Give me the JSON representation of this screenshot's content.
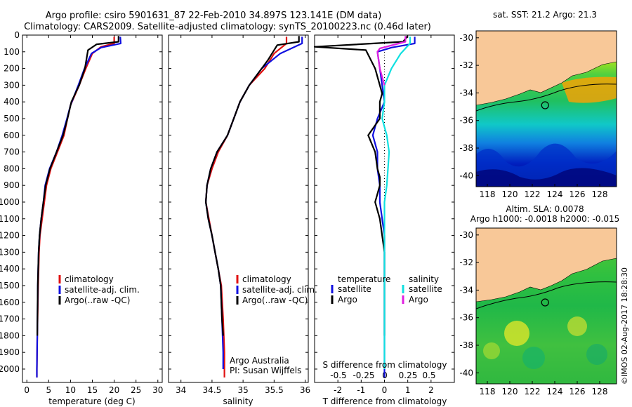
{
  "header": {
    "title_line1": "Argo profile: csiro 5901631_87 22-Feb-2010 34.897S 123.141E (DM data)",
    "title_line2": "Climatology: CARS2009. Satellite-adjusted climatology: synTS_20100223.nc (0.46d later)"
  },
  "colors": {
    "climatology": "#e01010",
    "satellite": "#1010e0",
    "argo": "#000000",
    "argo_s": "#e020e0",
    "sat_s": "#10e0e0",
    "land": "#f8c898"
  },
  "credit": {
    "org": "Argo Australia",
    "pi": "PI: Susan Wijffels"
  },
  "timestamp": "©IMOS 02-Aug-2017 18:28:30",
  "chart_data": [
    {
      "type": "line",
      "name": "temperature-profile",
      "xlabel": "temperature (deg C)",
      "ylabel": "",
      "xlim": [
        -1,
        31
      ],
      "ylim": [
        2080,
        0
      ],
      "xticks": [
        0,
        5,
        10,
        15,
        20,
        25,
        30
      ],
      "yticks": [
        0,
        100,
        200,
        300,
        400,
        500,
        600,
        700,
        800,
        900,
        1000,
        1100,
        1200,
        1300,
        1400,
        1500,
        1600,
        1700,
        1800,
        1900,
        2000
      ],
      "legend": [
        "climatology",
        "satellite-adj. clim.",
        "Argo(..raw -QC)"
      ],
      "series": [
        {
          "name": "climatology",
          "color": "#e01010",
          "points": [
            [
              20,
              10
            ],
            [
              20,
              50
            ],
            [
              17,
              70
            ],
            [
              15,
              110
            ],
            [
              13.5,
              200
            ],
            [
              12,
              300
            ],
            [
              10,
              420
            ],
            [
              9.3,
              500
            ],
            [
              8.5,
              600
            ],
            [
              7,
              700
            ],
            [
              5.5,
              800
            ],
            [
              4.5,
              900
            ],
            [
              4,
              1000
            ],
            [
              3.5,
              1100
            ],
            [
              3,
              1200
            ],
            [
              2.8,
              1300
            ],
            [
              2.6,
              1500
            ],
            [
              2.4,
              1800
            ],
            [
              2.3,
              2000
            ],
            [
              2.3,
              2050
            ]
          ]
        },
        {
          "name": "satellite-adj. clim.",
          "color": "#1010e0",
          "points": [
            [
              21.4,
              10
            ],
            [
              21.5,
              50
            ],
            [
              17,
              75
            ],
            [
              14.8,
              110
            ],
            [
              13.2,
              200
            ],
            [
              11.8,
              300
            ],
            [
              10,
              420
            ],
            [
              9.2,
              500
            ],
            [
              8.1,
              600
            ],
            [
              6.8,
              700
            ],
            [
              5.2,
              800
            ],
            [
              4.2,
              900
            ],
            [
              3.8,
              1000
            ],
            [
              3.3,
              1100
            ],
            [
              2.9,
              1200
            ],
            [
              2.7,
              1300
            ],
            [
              2.5,
              1500
            ],
            [
              2.4,
              1800
            ],
            [
              2.3,
              2000
            ],
            [
              2.3,
              2050
            ]
          ]
        },
        {
          "name": "Argo(..raw -QC)",
          "color": "#000000",
          "points": [
            [
              21,
              5
            ],
            [
              21,
              40
            ],
            [
              16,
              55
            ],
            [
              14,
              90
            ],
            [
              13.3,
              200
            ],
            [
              12,
              300
            ],
            [
              10.2,
              400
            ],
            [
              9.3,
              500
            ],
            [
              8.3,
              600
            ],
            [
              6.8,
              700
            ],
            [
              5.3,
              800
            ],
            [
              4.3,
              900
            ],
            [
              3.8,
              1000
            ],
            [
              3.3,
              1100
            ],
            [
              2.9,
              1200
            ],
            [
              2.7,
              1300
            ],
            [
              2.5,
              1500
            ],
            [
              2.4,
              1800
            ]
          ]
        }
      ]
    },
    {
      "type": "line",
      "name": "salinity-profile",
      "xlabel": "salinity",
      "xlim": [
        33.8,
        36.05
      ],
      "ylim": [
        2080,
        0
      ],
      "xticks": [
        34,
        34.5,
        35,
        35.5,
        36
      ],
      "legend": [
        "climatology",
        "satellite-adj. clim.",
        "Argo(..raw -QC)"
      ],
      "series": [
        {
          "name": "climatology",
          "color": "#e01010",
          "points": [
            [
              35.7,
              10
            ],
            [
              35.7,
              50
            ],
            [
              35.5,
              110
            ],
            [
              35.35,
              200
            ],
            [
              35.1,
              300
            ],
            [
              34.95,
              400
            ],
            [
              34.85,
              500
            ],
            [
              34.75,
              600
            ],
            [
              34.6,
              700
            ],
            [
              34.5,
              800
            ],
            [
              34.42,
              900
            ],
            [
              34.4,
              1000
            ],
            [
              34.45,
              1100
            ],
            [
              34.5,
              1200
            ],
            [
              34.55,
              1300
            ],
            [
              34.6,
              1400
            ],
            [
              34.65,
              1500
            ],
            [
              34.68,
              1700
            ],
            [
              34.7,
              1900
            ],
            [
              34.7,
              2050
            ]
          ]
        },
        {
          "name": "satellite-adj. clim.",
          "color": "#1010e0",
          "points": [
            [
              35.95,
              10
            ],
            [
              35.95,
              50
            ],
            [
              35.6,
              110
            ],
            [
              35.3,
              200
            ],
            [
              35.1,
              300
            ],
            [
              34.95,
              400
            ],
            [
              34.85,
              500
            ],
            [
              34.75,
              600
            ],
            [
              34.58,
              700
            ],
            [
              34.48,
              800
            ],
            [
              34.42,
              900
            ],
            [
              34.4,
              1000
            ],
            [
              34.44,
              1100
            ],
            [
              34.5,
              1200
            ],
            [
              34.55,
              1300
            ],
            [
              34.6,
              1400
            ],
            [
              34.64,
              1500
            ],
            [
              34.66,
              1700
            ],
            [
              34.68,
              1900
            ],
            [
              34.68,
              2000
            ]
          ]
        },
        {
          "name": "Argo(..raw -QC)",
          "color": "#000000",
          "points": [
            [
              35.9,
              5
            ],
            [
              35.9,
              40
            ],
            [
              35.55,
              60
            ],
            [
              35.4,
              150
            ],
            [
              35.3,
              200
            ],
            [
              35.1,
              300
            ],
            [
              34.95,
              400
            ],
            [
              34.85,
              500
            ],
            [
              34.75,
              600
            ],
            [
              34.58,
              700
            ],
            [
              34.48,
              800
            ],
            [
              34.42,
              900
            ],
            [
              34.4,
              1000
            ],
            [
              34.44,
              1100
            ],
            [
              34.5,
              1200
            ],
            [
              34.55,
              1300
            ],
            [
              34.6,
              1400
            ],
            [
              34.64,
              1500
            ],
            [
              34.66,
              1700
            ],
            [
              34.68,
              1800
            ]
          ]
        }
      ]
    },
    {
      "type": "line",
      "name": "difference-profile",
      "xlabel": "T difference from climatology",
      "xlabel2": "S difference from climatology",
      "xlim": [
        -3,
        3
      ],
      "ylim": [
        2080,
        0
      ],
      "xticks": [
        -2,
        -1,
        0,
        1,
        2
      ],
      "xticks2": [
        "-0.5",
        "-0.25",
        "0",
        "0.25",
        "0.5"
      ],
      "legend": {
        "temperature": "temperature",
        "salinity": "salinity",
        "satellite": "satellite",
        "argo": "Argo"
      },
      "series": [
        {
          "name": "T satellite",
          "color": "#1010e0",
          "points": [
            [
              1.3,
              10
            ],
            [
              1.3,
              50
            ],
            [
              0.3,
              75
            ],
            [
              -0.3,
              100
            ],
            [
              -0.2,
              200
            ],
            [
              -0.1,
              300
            ],
            [
              0,
              400
            ],
            [
              -0.3,
              500
            ],
            [
              -0.5,
              600
            ],
            [
              -0.3,
              700
            ],
            [
              -0.3,
              800
            ],
            [
              -0.2,
              900
            ],
            [
              -0.2,
              1000
            ],
            [
              -0.1,
              1100
            ],
            [
              0,
              1200
            ],
            [
              0,
              1400
            ],
            [
              0,
              1800
            ],
            [
              0,
              2000
            ],
            [
              0,
              2050
            ]
          ]
        },
        {
          "name": "T Argo",
          "color": "#000000",
          "points": [
            [
              1,
              5
            ],
            [
              0.8,
              40
            ],
            [
              -3,
              70
            ],
            [
              -0.8,
              90
            ],
            [
              -0.4,
              200
            ],
            [
              -0.2,
              300
            ],
            [
              -0.1,
              350
            ],
            [
              -0.2,
              400
            ],
            [
              -0.2,
              500
            ],
            [
              -0.7,
              600
            ],
            [
              -0.4,
              700
            ],
            [
              -0.3,
              800
            ],
            [
              -0.2,
              850
            ],
            [
              -0.2,
              900
            ],
            [
              -0.4,
              1000
            ],
            [
              -0.2,
              1100
            ],
            [
              -0.1,
              1200
            ],
            [
              0,
              1300
            ],
            [
              0,
              1400
            ],
            [
              0,
              1500
            ],
            [
              0,
              1800
            ]
          ]
        },
        {
          "name": "S satellite",
          "color": "#10e0e0",
          "points": [
            [
              1.1,
              10
            ],
            [
              1.1,
              50
            ],
            [
              0.7,
              110
            ],
            [
              0.3,
              200
            ],
            [
              0,
              300
            ],
            [
              0,
              400
            ],
            [
              -0.1,
              500
            ],
            [
              0.1,
              600
            ],
            [
              0.2,
              700
            ],
            [
              0.15,
              800
            ],
            [
              0.1,
              900
            ],
            [
              0,
              1000
            ],
            [
              0,
              1200
            ],
            [
              0,
              2000
            ]
          ]
        },
        {
          "name": "S Argo",
          "color": "#e020e0",
          "points": [
            [
              0.9,
              5
            ],
            [
              0.9,
              40
            ],
            [
              -0.2,
              80
            ],
            [
              -0.3,
              100
            ],
            [
              -0.2,
              200
            ],
            [
              0,
              300
            ]
          ]
        }
      ]
    },
    {
      "type": "heatmap",
      "name": "sst-map",
      "title": "sat. SST: 21.2 Argo: 21.3",
      "xlim": [
        117,
        129.5
      ],
      "ylim": [
        -40.8,
        -29.5
      ],
      "xticks": [
        118,
        120,
        122,
        124,
        126,
        128
      ],
      "yticks": [
        -30,
        -32,
        -34,
        -36,
        -38,
        -40
      ],
      "marker": [
        123.141,
        -34.897
      ]
    },
    {
      "type": "heatmap",
      "name": "sla-map",
      "title": "Altim. SLA: 0.0078",
      "title2": "Argo h1000: -0.0018 h2000: -0.015",
      "xlim": [
        117,
        129.5
      ],
      "ylim": [
        -40.8,
        -29.5
      ],
      "xticks": [
        118,
        120,
        122,
        124,
        126,
        128
      ],
      "yticks": [
        -30,
        -32,
        -34,
        -36,
        -38,
        -40
      ],
      "marker": [
        123.141,
        -34.897
      ]
    }
  ]
}
